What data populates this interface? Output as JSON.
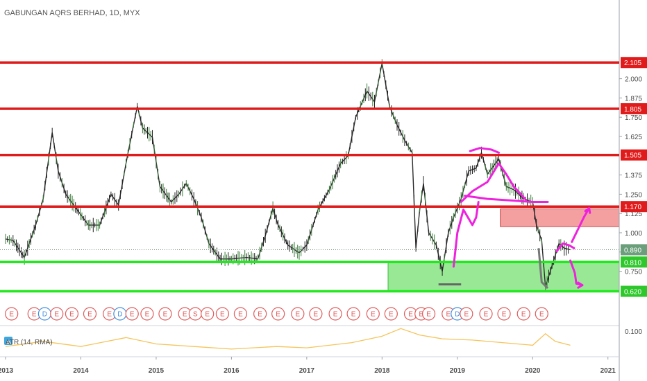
{
  "chart_data": {
    "type": "candlestick",
    "title": "GABUNGAN AQRS BERHAD, 1D, MYX",
    "y_ticks": [
      0.75,
      0.875,
      1.0,
      1.125,
      1.25,
      1.375,
      1.625,
      1.75,
      1.875,
      2.0
    ],
    "y_tick_labels": [
      "0.750",
      "0.875",
      "1.000",
      "1.125",
      "1.250",
      "1.375",
      "1.625",
      "1.750",
      "1.875",
      "2.000"
    ],
    "x_ticks": [
      "2013",
      "2014",
      "2015",
      "2016",
      "2017",
      "2018",
      "2019",
      "2020",
      "2021"
    ],
    "x_tick_years": [
      2013,
      2014,
      2015,
      2016,
      2017,
      2018,
      2019,
      2020,
      2021
    ],
    "resistance_levels": [
      {
        "value": 2.105,
        "label": "2.105"
      },
      {
        "value": 1.805,
        "label": "1.805"
      },
      {
        "value": 1.505,
        "label": "1.505"
      },
      {
        "value": 1.17,
        "label": "1.170"
      }
    ],
    "support_levels": [
      {
        "value": 0.81,
        "label": "0.810"
      },
      {
        "value": 0.62,
        "label": "0.620"
      }
    ],
    "last_price": {
      "value": 0.89,
      "label": "0.890"
    },
    "price_path": [
      [
        2013.0,
        0.96
      ],
      [
        2013.1,
        0.95
      ],
      [
        2013.25,
        0.84
      ],
      [
        2013.4,
        1.05
      ],
      [
        2013.5,
        1.22
      ],
      [
        2013.62,
        1.65
      ],
      [
        2013.7,
        1.4
      ],
      [
        2013.8,
        1.25
      ],
      [
        2013.95,
        1.15
      ],
      [
        2014.1,
        1.05
      ],
      [
        2014.25,
        1.05
      ],
      [
        2014.4,
        1.25
      ],
      [
        2014.5,
        1.18
      ],
      [
        2014.6,
        1.45
      ],
      [
        2014.7,
        1.7
      ],
      [
        2014.75,
        1.82
      ],
      [
        2014.82,
        1.68
      ],
      [
        2014.95,
        1.62
      ],
      [
        2015.05,
        1.3
      ],
      [
        2015.2,
        1.2
      ],
      [
        2015.3,
        1.25
      ],
      [
        2015.4,
        1.32
      ],
      [
        2015.5,
        1.22
      ],
      [
        2015.6,
        1.1
      ],
      [
        2015.7,
        0.93
      ],
      [
        2015.85,
        0.83
      ],
      [
        2016.0,
        0.83
      ],
      [
        2016.2,
        0.84
      ],
      [
        2016.35,
        0.83
      ],
      [
        2016.45,
        0.98
      ],
      [
        2016.55,
        1.16
      ],
      [
        2016.62,
        1.05
      ],
      [
        2016.75,
        0.92
      ],
      [
        2016.9,
        0.87
      ],
      [
        2017.0,
        0.92
      ],
      [
        2017.15,
        1.15
      ],
      [
        2017.3,
        1.28
      ],
      [
        2017.45,
        1.45
      ],
      [
        2017.55,
        1.5
      ],
      [
        2017.65,
        1.75
      ],
      [
        2017.8,
        1.92
      ],
      [
        2017.9,
        1.85
      ],
      [
        2018.0,
        2.1
      ],
      [
        2018.1,
        1.82
      ],
      [
        2018.2,
        1.7
      ],
      [
        2018.3,
        1.6
      ],
      [
        2018.4,
        1.52
      ],
      [
        2018.45,
        0.9
      ],
      [
        2018.5,
        1.15
      ],
      [
        2018.55,
        1.32
      ],
      [
        2018.62,
        1.0
      ],
      [
        2018.72,
        0.92
      ],
      [
        2018.8,
        0.75
      ],
      [
        2018.88,
        1.0
      ],
      [
        2018.95,
        1.1
      ],
      [
        2019.05,
        1.22
      ],
      [
        2019.15,
        1.4
      ],
      [
        2019.25,
        1.42
      ],
      [
        2019.32,
        1.52
      ],
      [
        2019.4,
        1.38
      ],
      [
        2019.55,
        1.48
      ],
      [
        2019.65,
        1.3
      ],
      [
        2019.75,
        1.28
      ],
      [
        2019.88,
        1.22
      ],
      [
        2020.0,
        1.2
      ],
      [
        2020.05,
        1.05
      ],
      [
        2020.12,
        0.95
      ],
      [
        2020.17,
        0.65
      ],
      [
        2020.28,
        0.82
      ],
      [
        2020.35,
        0.93
      ],
      [
        2020.42,
        0.9
      ],
      [
        2020.5,
        0.89
      ]
    ],
    "atr_path": [
      [
        2013.0,
        0.04
      ],
      [
        2013.5,
        0.06
      ],
      [
        2014.0,
        0.04
      ],
      [
        2014.6,
        0.075
      ],
      [
        2015.0,
        0.05
      ],
      [
        2015.5,
        0.04
      ],
      [
        2016.0,
        0.03
      ],
      [
        2016.6,
        0.04
      ],
      [
        2017.0,
        0.035
      ],
      [
        2017.6,
        0.055
      ],
      [
        2018.0,
        0.08
      ],
      [
        2018.25,
        0.11
      ],
      [
        2018.5,
        0.085
      ],
      [
        2018.8,
        0.07
      ],
      [
        2019.2,
        0.065
      ],
      [
        2019.6,
        0.055
      ],
      [
        2020.0,
        0.045
      ],
      [
        2020.17,
        0.09
      ],
      [
        2020.3,
        0.06
      ],
      [
        2020.5,
        0.045
      ]
    ],
    "events": [
      "E",
      "E",
      "D",
      "E",
      "E",
      "E",
      "E",
      "D",
      "E",
      "E",
      "E",
      "E",
      "S",
      "E",
      "E",
      "E",
      "E",
      "E",
      "E",
      "E",
      "E",
      "E",
      "E",
      "E",
      "E",
      "E",
      "E",
      "E",
      "D",
      "E",
      "E",
      "E",
      "E",
      "E"
    ],
    "event_years": [
      2013.08,
      2013.38,
      2013.52,
      2013.68,
      2013.88,
      2014.12,
      2014.38,
      2014.52,
      2014.68,
      2014.88,
      2015.12,
      2015.38,
      2015.52,
      2015.68,
      2015.88,
      2016.12,
      2016.38,
      2016.62,
      2016.88,
      2017.12,
      2017.38,
      2017.62,
      2017.88,
      2018.12,
      2018.38,
      2018.52,
      2018.62,
      2018.88,
      2019.0,
      2019.12,
      2019.38,
      2019.62,
      2019.88,
      2020.12
    ],
    "indicator_label": "ATR (14, RMA)",
    "atr_tick_label": "0.100",
    "colors": {
      "resistance": "#e01b1b",
      "support": "#22e81f",
      "candle": "#2a2a2a",
      "annotation": "#ee22dd",
      "atr": "#f5c45a",
      "last_price_badge": "#6b9e7a",
      "red_zone": "#f08080",
      "green_zone": "#7ee27a"
    }
  }
}
